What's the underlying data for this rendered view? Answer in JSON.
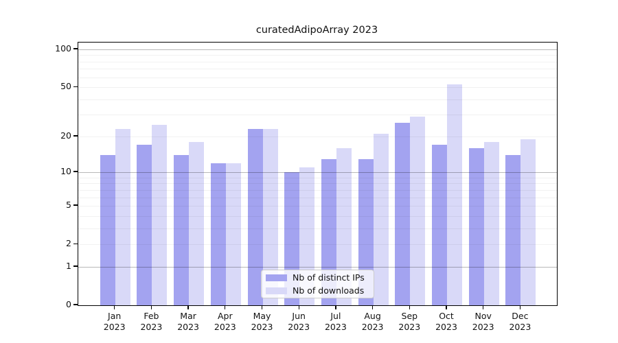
{
  "chart_data": {
    "type": "bar",
    "title": "curatedAdipoArray 2023",
    "scale": "log1p",
    "grid": true,
    "legend_position": "bottom-center",
    "categories": [
      {
        "month": "Jan",
        "year": "2023"
      },
      {
        "month": "Feb",
        "year": "2023"
      },
      {
        "month": "Mar",
        "year": "2023"
      },
      {
        "month": "Apr",
        "year": "2023"
      },
      {
        "month": "May",
        "year": "2023"
      },
      {
        "month": "Jun",
        "year": "2023"
      },
      {
        "month": "Jul",
        "year": "2023"
      },
      {
        "month": "Aug",
        "year": "2023"
      },
      {
        "month": "Sep",
        "year": "2023"
      },
      {
        "month": "Oct",
        "year": "2023"
      },
      {
        "month": "Nov",
        "year": "2023"
      },
      {
        "month": "Dec",
        "year": "2023"
      }
    ],
    "series": [
      {
        "name": "Nb of distinct IPs",
        "color": "#a3a3f0",
        "values": [
          14,
          17,
          14,
          12,
          23,
          10,
          13,
          13,
          26,
          17,
          16,
          14
        ]
      },
      {
        "name": "Nb of downloads",
        "color": "#d9d9f8",
        "values": [
          23,
          25,
          18,
          12,
          23,
          11,
          16,
          21,
          29,
          53,
          18,
          19
        ]
      }
    ],
    "yticks": [
      100,
      50,
      20,
      10,
      5,
      2,
      1,
      0
    ],
    "minor_gridlines": [
      2,
      3,
      4,
      5,
      6,
      7,
      8,
      9,
      20,
      30,
      40,
      50,
      60,
      70,
      80,
      90
    ],
    "major_gridlines": [
      1,
      10,
      100
    ],
    "ylim": [
      0,
      113
    ]
  }
}
